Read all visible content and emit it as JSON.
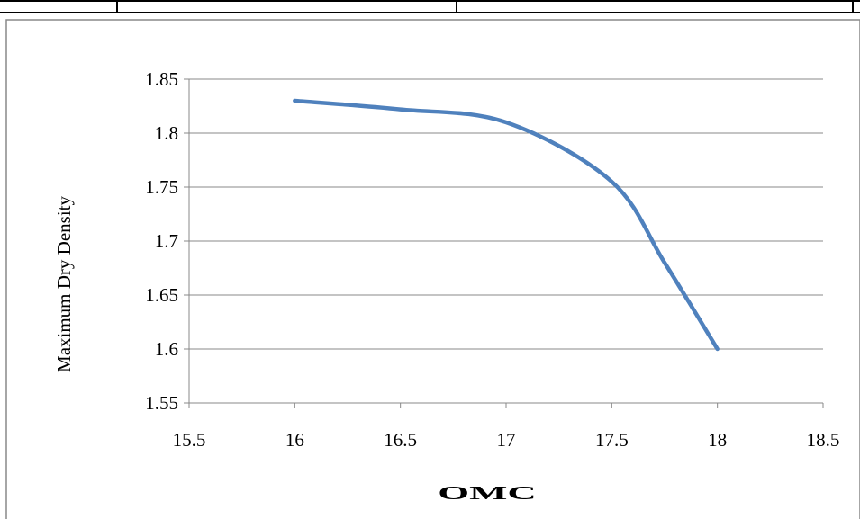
{
  "chart_data": {
    "type": "line",
    "title": "",
    "xlabel": "OMC",
    "ylabel": "Maximum Dry Density",
    "xlim": [
      15.5,
      18.5
    ],
    "ylim": [
      1.55,
      1.85
    ],
    "x_ticks": [
      "15.5",
      "16",
      "16.5",
      "17",
      "17.5",
      "18",
      "18.5"
    ],
    "y_ticks": [
      "1.55",
      "1.6",
      "1.65",
      "1.7",
      "1.75",
      "1.8",
      "1.85"
    ],
    "grid": true,
    "legend": "none",
    "series": [
      {
        "color": "#4f81bd",
        "x": [
          16,
          16.5,
          17,
          17.5,
          17.75,
          18
        ],
        "y": [
          1.83,
          1.822,
          1.81,
          1.755,
          1.68,
          1.6
        ]
      }
    ]
  }
}
